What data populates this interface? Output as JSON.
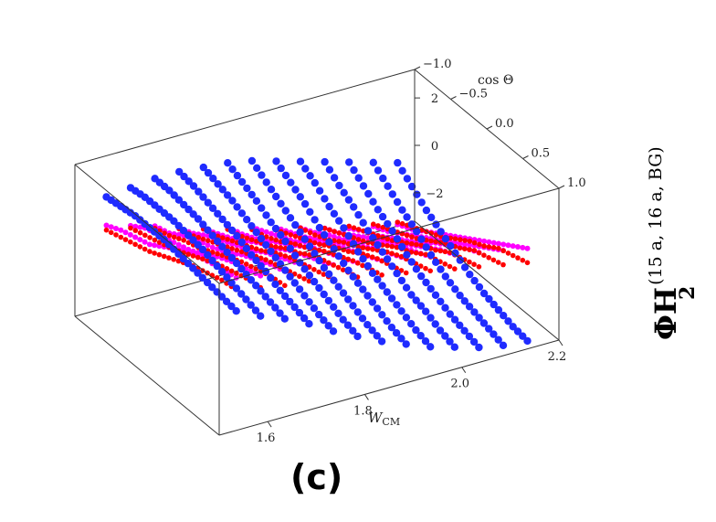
{
  "panel_label": "(c)",
  "colors": {
    "series_1": "#ff00ff",
    "series_2": "#ff0000",
    "series_3": "#1f2bff",
    "box": "#333333"
  },
  "chart_data": {
    "type": "scatter",
    "projection": "3d",
    "box_ratios": [
      1.0,
      0.7,
      0.45
    ],
    "title": "",
    "x_axis": {
      "label": "W",
      "label_subscript": "CM",
      "range": [
        1.5,
        2.2
      ],
      "ticks": [
        1.6,
        1.8,
        2.0,
        2.2
      ],
      "tick_labels": [
        "1.6",
        "1.8",
        "2.0",
        "2.2"
      ]
    },
    "y_axis": {
      "label": "cos Θ",
      "range": [
        -1.0,
        1.0
      ],
      "ticks": [
        1.0,
        0.5,
        0.0,
        -0.5,
        -1.0
      ],
      "tick_labels": [
        "1.0",
        "0.5",
        "0.0",
        "−0.5",
        "−1.0"
      ]
    },
    "z_axis": {
      "label": "ΦH",
      "label_superscript": "(15 a, 16 a, BG)",
      "label_subscript": "2",
      "range": [
        -3.2,
        3.2
      ],
      "ticks": [
        2,
        0,
        -2
      ],
      "tick_labels": [
        "2",
        "0",
        "−2"
      ]
    },
    "series": [
      {
        "color": "#ff00ff",
        "marker_size": 3,
        "w_grid": [
          1.55,
          1.6,
          1.65,
          1.7,
          1.75,
          1.8,
          1.85,
          1.9,
          1.95,
          2.0,
          2.05,
          2.1,
          2.15
        ],
        "cos_grid": [
          -0.9,
          -0.7,
          -0.5,
          -0.3,
          -0.1,
          0.1,
          0.3,
          0.5,
          0.7,
          0.9
        ],
        "values": [
          [
            0.6,
            0.9,
            1.1,
            1.3,
            1.7,
            2.1,
            2.4,
            2.6,
            2.8,
            2.9
          ],
          [
            0.3,
            0.7,
            0.9,
            1.1,
            1.3,
            1.6,
            2.0,
            2.3,
            2.5,
            2.7
          ],
          [
            0.0,
            0.2,
            0.6,
            0.9,
            1.1,
            1.4,
            1.8,
            2.1,
            2.4,
            2.6
          ],
          [
            -0.4,
            -0.1,
            0.3,
            0.6,
            0.9,
            1.2,
            1.6,
            1.9,
            2.2,
            2.5
          ],
          [
            -0.7,
            -0.4,
            -0.1,
            0.3,
            0.7,
            1.0,
            1.4,
            1.7,
            2.0,
            2.3
          ],
          [
            -0.9,
            -0.7,
            -0.4,
            0.0,
            0.4,
            0.8,
            1.2,
            1.5,
            1.8,
            2.1
          ],
          [
            -1.2,
            -0.9,
            -0.6,
            -0.3,
            0.2,
            0.6,
            1.0,
            1.3,
            1.6,
            1.9
          ],
          [
            -1.5,
            -1.2,
            -0.9,
            -0.5,
            -0.1,
            0.3,
            0.7,
            1.1,
            1.4,
            1.7
          ],
          [
            -1.8,
            -1.5,
            -1.1,
            -0.8,
            -0.4,
            0.1,
            0.5,
            0.9,
            1.2,
            1.5
          ],
          [
            -2.1,
            -1.8,
            -1.4,
            -1.0,
            -0.6,
            -0.2,
            0.2,
            0.6,
            1.0,
            1.3
          ],
          [
            -2.4,
            -2.0,
            -1.7,
            -1.3,
            -0.9,
            -0.5,
            0.0,
            0.4,
            0.8,
            1.1
          ],
          [
            -2.6,
            -2.3,
            -1.9,
            -1.5,
            -1.1,
            -0.7,
            -0.3,
            0.1,
            0.5,
            0.9
          ],
          [
            -2.8,
            -2.5,
            -2.1,
            -1.7,
            -1.3,
            -0.9,
            -0.5,
            -0.1,
            0.3,
            0.7
          ]
        ]
      },
      {
        "color": "#ff0000",
        "marker_size": 2.8,
        "w_grid": [
          1.55,
          1.6,
          1.65,
          1.7,
          1.75,
          1.8,
          1.85,
          1.9,
          1.95,
          2.0,
          2.05,
          2.1,
          2.15
        ],
        "cos_grid": [
          -0.9,
          -0.7,
          -0.5,
          -0.3,
          -0.1,
          0.1,
          0.3,
          0.5,
          0.7,
          0.9
        ],
        "values": [
          [
            0.4,
            0.6,
            0.8,
            1.0,
            1.3,
            1.6,
            1.9,
            2.1,
            2.3,
            2.4
          ],
          [
            0.2,
            0.4,
            0.6,
            0.8,
            1.1,
            1.4,
            1.7,
            1.9,
            2.1,
            2.2
          ],
          [
            -0.1,
            0.1,
            0.4,
            0.6,
            0.9,
            1.2,
            1.5,
            1.7,
            1.9,
            2.0
          ],
          [
            -0.4,
            -0.2,
            0.1,
            0.4,
            0.7,
            1.0,
            1.3,
            1.5,
            1.7,
            1.9
          ],
          [
            -0.7,
            -0.5,
            -0.2,
            0.1,
            0.4,
            0.8,
            1.1,
            1.3,
            1.5,
            1.7
          ],
          [
            -1.0,
            -0.8,
            -0.5,
            -0.2,
            0.2,
            0.5,
            0.9,
            1.1,
            1.3,
            1.5
          ],
          [
            -1.3,
            -1.1,
            -0.8,
            -0.4,
            -0.1,
            0.3,
            0.6,
            0.9,
            1.1,
            1.3
          ],
          [
            -1.6,
            -1.3,
            -1.0,
            -0.7,
            -0.3,
            0.0,
            0.4,
            0.7,
            0.9,
            1.1
          ],
          [
            -1.8,
            -1.6,
            -1.3,
            -0.9,
            -0.6,
            -0.2,
            0.2,
            0.5,
            0.7,
            0.9
          ],
          [
            -2.1,
            -1.8,
            -1.5,
            -1.2,
            -0.8,
            -0.4,
            -0.1,
            0.3,
            0.5,
            0.7
          ],
          [
            -2.3,
            -2.0,
            -1.7,
            -1.4,
            -1.0,
            -0.6,
            -0.3,
            0.1,
            0.3,
            0.5
          ],
          [
            -2.5,
            -2.2,
            -1.9,
            -1.6,
            -1.2,
            -0.8,
            -0.5,
            -0.1,
            0.1,
            0.3
          ],
          [
            -2.7,
            -2.4,
            -2.1,
            -1.8,
            -1.4,
            -1.0,
            -0.7,
            -0.3,
            -0.1,
            0.1
          ]
        ]
      },
      {
        "color": "#1f2bff",
        "marker_size": 4.2,
        "w_grid": [
          1.55,
          1.6,
          1.65,
          1.7,
          1.75,
          1.8,
          1.85,
          1.9,
          1.95,
          2.0,
          2.05,
          2.1,
          2.15
        ],
        "cos_grid": [
          -0.9,
          -0.7,
          -0.5,
          -0.3,
          -0.1,
          0.1,
          0.3,
          0.5,
          0.7,
          0.9
        ],
        "values": [
          [
            1.8,
            1.9,
            2.0,
            2.0,
            2.0,
            1.9,
            1.8,
            1.7,
            1.6,
            1.5
          ],
          [
            1.9,
            2.0,
            2.0,
            2.0,
            1.9,
            1.8,
            1.6,
            1.4,
            1.2,
            1.0
          ],
          [
            2.0,
            2.0,
            1.9,
            1.8,
            1.6,
            1.4,
            1.2,
            1.0,
            0.8,
            0.6
          ],
          [
            2.0,
            1.9,
            1.7,
            1.5,
            1.3,
            1.0,
            0.8,
            0.5,
            0.3,
            0.1
          ],
          [
            1.9,
            1.7,
            1.5,
            1.2,
            0.9,
            0.6,
            0.3,
            0.0,
            -0.3,
            -0.5
          ],
          [
            1.8,
            1.5,
            1.2,
            0.8,
            0.5,
            0.1,
            -0.2,
            -0.5,
            -0.8,
            -1.0
          ],
          [
            1.6,
            1.2,
            0.8,
            0.4,
            0.0,
            -0.4,
            -0.7,
            -1.0,
            -1.3,
            -1.5
          ],
          [
            1.3,
            0.9,
            0.5,
            0.0,
            -0.4,
            -0.8,
            -1.1,
            -1.4,
            -1.7,
            -1.9
          ],
          [
            1.0,
            0.6,
            0.1,
            -0.3,
            -0.8,
            -1.2,
            -1.5,
            -1.8,
            -2.1,
            -2.3
          ],
          [
            0.7,
            0.2,
            -0.2,
            -0.7,
            -1.1,
            -1.5,
            -1.9,
            -2.1,
            -2.4,
            -2.6
          ],
          [
            0.4,
            -0.1,
            -0.6,
            -1.0,
            -1.5,
            -1.9,
            -2.2,
            -2.5,
            -2.7,
            -2.9
          ],
          [
            0.1,
            -0.4,
            -0.9,
            -1.3,
            -1.8,
            -2.2,
            -2.5,
            -2.7,
            -2.9,
            -3.1
          ],
          [
            -0.2,
            -0.7,
            -1.2,
            -1.6,
            -2.0,
            -2.4,
            -2.7,
            -2.9,
            -3.1,
            -3.2
          ]
        ]
      }
    ]
  }
}
